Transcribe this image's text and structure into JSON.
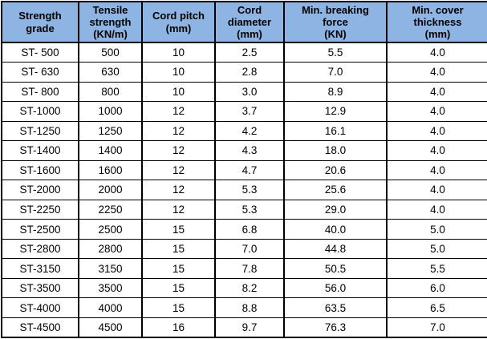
{
  "table": {
    "columns": [
      {
        "key": "strength-grade",
        "label": "Strength\ngrade"
      },
      {
        "key": "tensile-strength",
        "label": "Tensile\nstrength\n(KN/m)"
      },
      {
        "key": "cord-pitch",
        "label": "Cord pitch\n(mm)"
      },
      {
        "key": "cord-diameter",
        "label": "Cord\ndiameter\n(mm)"
      },
      {
        "key": "min-breaking-force",
        "label": "Min. breaking\nforce\n(KN)"
      },
      {
        "key": "min-cover-thickness",
        "label": "Min. cover\nthickness\n(mm)"
      }
    ],
    "rows": [
      [
        "ST- 500",
        "500",
        "10",
        "2.5",
        "5.5",
        "4.0"
      ],
      [
        "ST- 630",
        "630",
        "10",
        "2.8",
        "7.0",
        "4.0"
      ],
      [
        "ST- 800",
        "800",
        "10",
        "3.0",
        "8.9",
        "4.0"
      ],
      [
        "ST-1000",
        "1000",
        "12",
        "3.7",
        "12.9",
        "4.0"
      ],
      [
        "ST-1250",
        "1250",
        "12",
        "4.2",
        "16.1",
        "4.0"
      ],
      [
        "ST-1400",
        "1400",
        "12",
        "4.3",
        "18.0",
        "4.0"
      ],
      [
        "ST-1600",
        "1600",
        "12",
        "4.7",
        "20.6",
        "4.0"
      ],
      [
        "ST-2000",
        "2000",
        "12",
        "5.3",
        "25.6",
        "4.0"
      ],
      [
        "ST-2250",
        "2250",
        "12",
        "5.3",
        "29.0",
        "4.0"
      ],
      [
        "ST-2500",
        "2500",
        "15",
        "6.8",
        "40.0",
        "5.0"
      ],
      [
        "ST-2800",
        "2800",
        "15",
        "7.0",
        "44.8",
        "5.0"
      ],
      [
        "ST-3150",
        "3150",
        "15",
        "7.8",
        "50.5",
        "5.5"
      ],
      [
        "ST-3500",
        "3500",
        "15",
        "8.2",
        "56.0",
        "6.0"
      ],
      [
        "ST-4000",
        "4000",
        "15",
        "8.8",
        "63.5",
        "6.5"
      ],
      [
        "ST-4500",
        "4500",
        "16",
        "9.7",
        "76.3",
        "7.0"
      ]
    ]
  },
  "chart_data": {
    "type": "table",
    "title": "",
    "columns": [
      "Strength grade",
      "Tensile strength (KN/m)",
      "Cord pitch (mm)",
      "Cord diameter (mm)",
      "Min. breaking force (KN)",
      "Min. cover thickness (mm)"
    ],
    "rows": [
      [
        "ST- 500",
        500,
        10,
        2.5,
        5.5,
        4.0
      ],
      [
        "ST- 630",
        630,
        10,
        2.8,
        7.0,
        4.0
      ],
      [
        "ST- 800",
        800,
        10,
        3.0,
        8.9,
        4.0
      ],
      [
        "ST-1000",
        1000,
        12,
        3.7,
        12.9,
        4.0
      ],
      [
        "ST-1250",
        1250,
        12,
        4.2,
        16.1,
        4.0
      ],
      [
        "ST-1400",
        1400,
        12,
        4.3,
        18.0,
        4.0
      ],
      [
        "ST-1600",
        1600,
        12,
        4.7,
        20.6,
        4.0
      ],
      [
        "ST-2000",
        2000,
        12,
        5.3,
        25.6,
        4.0
      ],
      [
        "ST-2250",
        2250,
        12,
        5.3,
        29.0,
        4.0
      ],
      [
        "ST-2500",
        2500,
        15,
        6.8,
        40.0,
        5.0
      ],
      [
        "ST-2800",
        2800,
        15,
        7.0,
        44.8,
        5.0
      ],
      [
        "ST-3150",
        3150,
        15,
        7.8,
        50.5,
        5.5
      ],
      [
        "ST-3500",
        3500,
        15,
        8.2,
        56.0,
        6.0
      ],
      [
        "ST-4000",
        4000,
        15,
        8.8,
        63.5,
        6.5
      ],
      [
        "ST-4500",
        4500,
        16,
        9.7,
        76.3,
        7.0
      ]
    ]
  },
  "colors": {
    "header_bg": "#8DB4E2",
    "border": "#000000",
    "text": "#000000",
    "row_bg": "#FFFFFF"
  }
}
